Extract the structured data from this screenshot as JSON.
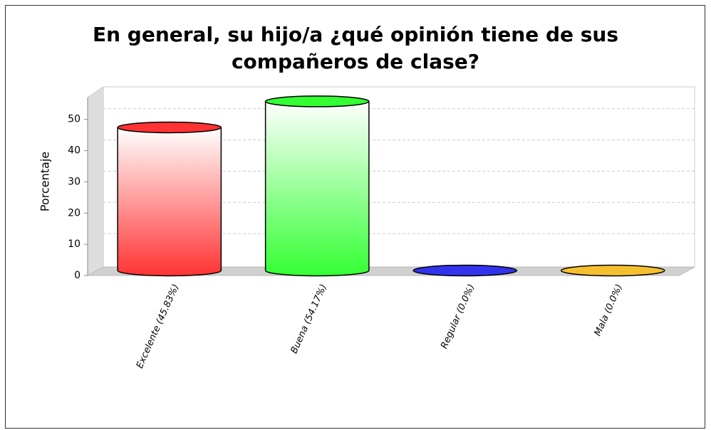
{
  "chart_data": {
    "type": "bar",
    "title": "En general, su hijo/a ¿qué opinión tiene de sus compañeros de clase?",
    "y_label": "Porcentaje",
    "categories": [
      "Excelente (45.83%)",
      "Buena (54.17%)",
      "Regular (0.0%)",
      "Mala (0.0%)"
    ],
    "values": [
      45.83,
      54.17,
      0,
      0
    ],
    "colors": [
      "#ff3333",
      "#33ff33",
      "#3333ee",
      "#f5c030"
    ],
    "ylim": [
      0,
      57
    ],
    "yticks": [
      0,
      10,
      20,
      30,
      40,
      50
    ],
    "grid": true
  }
}
